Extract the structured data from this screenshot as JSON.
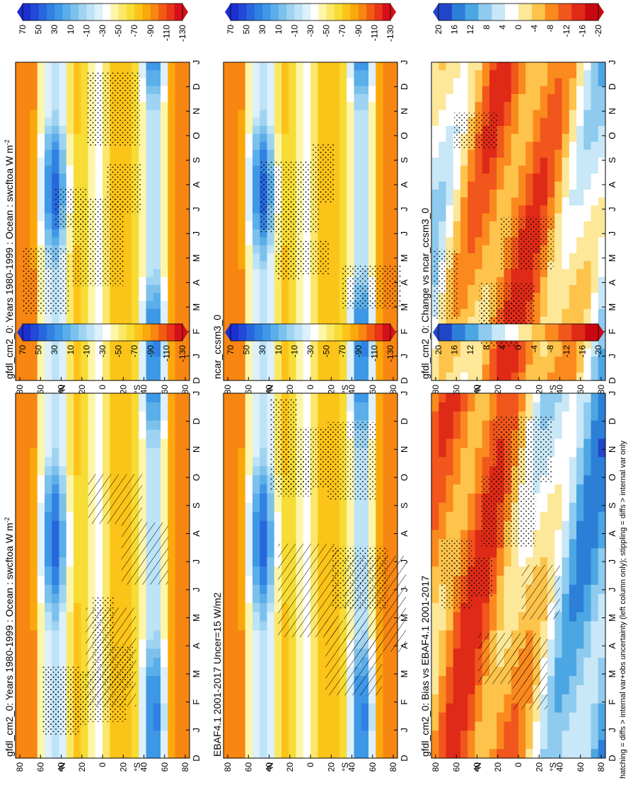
{
  "figure": {
    "footnote": "hatching = diffs > internal var+obs uncertainty (left column only); stippling = diffs > internal var only"
  },
  "chart_data": [
    {
      "type": "heatmap",
      "panel": "top-left",
      "title": "gfdl_cm2_0: Years 1980-1999 : Ocean : swcftoa W m",
      "title_superscript": "-2",
      "x_labels": [
        "D",
        "J",
        "F",
        "M",
        "A",
        "M",
        "J",
        "J",
        "A",
        "S",
        "O",
        "N",
        "D",
        "J"
      ],
      "y_labels": [
        "80",
        "60",
        "40",
        "20",
        "0",
        "20",
        "40",
        "60",
        "80"
      ],
      "y_side": [
        "°N",
        "°S"
      ],
      "colorbar": {
        "labels": [
          "70",
          "50",
          "30",
          "10",
          "-10",
          "-30",
          "-50",
          "-70",
          "-90",
          "-110",
          "-130"
        ],
        "palette": "full"
      }
    },
    {
      "type": "heatmap",
      "panel": "top-right",
      "title": "gfdl_cm2_0: Years 1980-1999 : Ocean : swcftoa W m",
      "title_superscript": "-2",
      "x_labels": [
        "D",
        "J",
        "F",
        "M",
        "A",
        "M",
        "J",
        "J",
        "A",
        "S",
        "O",
        "N",
        "D",
        "J"
      ],
      "y_labels": [
        "80",
        "60",
        "40",
        "20",
        "0",
        "20",
        "40",
        "60",
        "80"
      ],
      "y_side": [
        "°N",
        "°S"
      ],
      "colorbar": {
        "labels": [
          "70",
          "50",
          "30",
          "10",
          "-10",
          "-30",
          "-50",
          "-70",
          "-90",
          "-110",
          "-130"
        ],
        "palette": "full"
      }
    },
    {
      "type": "heatmap",
      "panel": "middle-left",
      "title": "EBAF4.1 2001-2017 Uncer=15 W/m2",
      "title_superscript": "",
      "x_labels": [
        "D",
        "J",
        "F",
        "M",
        "A",
        "M",
        "J",
        "J",
        "A",
        "S",
        "O",
        "N",
        "D",
        "J"
      ],
      "y_labels": [
        "80",
        "60",
        "40",
        "20",
        "0",
        "20",
        "40",
        "60",
        "80"
      ],
      "y_side": [
        "°N",
        "°S"
      ],
      "colorbar": {
        "labels": [
          "70",
          "50",
          "30",
          "10",
          "-10",
          "-30",
          "-50",
          "-70",
          "-90",
          "-110",
          "-130"
        ],
        "palette": "full"
      }
    },
    {
      "type": "heatmap",
      "panel": "middle-right",
      "title": "ncar_ccsm3_0",
      "title_superscript": "",
      "x_labels": [
        "D",
        "J",
        "F",
        "M",
        "A",
        "M",
        "J",
        "J",
        "A",
        "S",
        "O",
        "N",
        "D",
        "J"
      ],
      "y_labels": [
        "80",
        "60",
        "40",
        "20",
        "0",
        "20",
        "40",
        "60",
        "80"
      ],
      "y_side": [
        "°N",
        "°S"
      ],
      "colorbar": {
        "labels": [
          "70",
          "50",
          "30",
          "10",
          "-10",
          "-30",
          "-50",
          "-70",
          "-90",
          "-110",
          "-130"
        ],
        "palette": "full"
      }
    },
    {
      "type": "heatmap",
      "panel": "bottom-left",
      "title": "gfdl_cm2_0: Bias vs EBAF4.1 2001-2017",
      "title_superscript": "",
      "x_labels": [
        "D",
        "J",
        "F",
        "M",
        "A",
        "M",
        "J",
        "J",
        "A",
        "S",
        "O",
        "N",
        "D",
        "J"
      ],
      "y_labels": [
        "80",
        "60",
        "40",
        "20",
        "0",
        "20",
        "40",
        "60",
        "80"
      ],
      "y_side": [
        "°N",
        "°S"
      ],
      "colorbar": {
        "labels": [
          "20",
          "16",
          "12",
          "8",
          "4",
          "0",
          "-4",
          "-8",
          "-12",
          "-16",
          "-20"
        ],
        "palette": "diff"
      }
    },
    {
      "type": "heatmap",
      "panel": "bottom-right",
      "title": "gfdl_cm2_0: Change vs ncar_ccsm3_0",
      "title_superscript": "",
      "x_labels": [
        "D",
        "J",
        "F",
        "M",
        "A",
        "M",
        "J",
        "J",
        "A",
        "S",
        "O",
        "N",
        "D",
        "J"
      ],
      "y_labels": [
        "80",
        "60",
        "40",
        "20",
        "0",
        "20",
        "40",
        "60",
        "80"
      ],
      "y_side": [
        "°N",
        "°S"
      ],
      "colorbar": {
        "labels": [
          "20",
          "16",
          "12",
          "8",
          "4",
          "0",
          "-4",
          "-8",
          "-12",
          "-16",
          "-20"
        ],
        "palette": "diff"
      }
    }
  ],
  "colors": {
    "full_palette": [
      "#d4101a",
      "#ea3516",
      "#f25c12",
      "#f88612",
      "#fba80c",
      "#fcc419",
      "#f7dc35",
      "#fbe869",
      "#fdf6a9",
      "#ffffff",
      "#ddf0fb",
      "#bde3f7",
      "#9fd3f2",
      "#7cc1ec",
      "#5aaeea",
      "#3f98e6",
      "#3180e2",
      "#2866de",
      "#2249d7",
      "#1c2fcf"
    ],
    "diff_palette": [
      "#c80810",
      "#df2a18",
      "#f1561c",
      "#fb8a1e",
      "#fdc34a",
      "#fde89a",
      "#ffffff",
      "#c8e7f7",
      "#8ecbef",
      "#4ba6e3",
      "#2c7fd7",
      "#2246c8"
    ]
  }
}
